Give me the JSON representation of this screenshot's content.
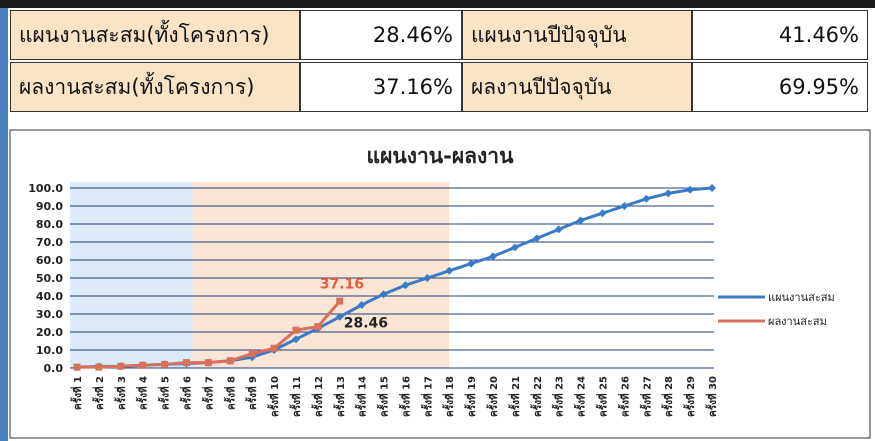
{
  "table": {
    "rows": [
      [
        "แผนงานสะสม(ทั้งโครงการ)",
        "28.46%",
        "แผนงานปีปัจจุบัน",
        "41.46%"
      ],
      [
        "ผลงานสะสม(ทั้งโครงการ)",
        "37.16%",
        "ผลงานปีปัจจุบัน",
        "69.95%"
      ]
    ]
  },
  "chart_data": {
    "type": "line",
    "title": "แผนงาน-ผลงาน",
    "categories": [
      "ครั้งที่ 1",
      "ครั้งที่ 2",
      "ครั้งที่ 3",
      "ครั้งที่ 4",
      "ครั้งที่ 5",
      "ครั้งที่ 6",
      "ครั้งที่ 7",
      "ครั้งที่ 8",
      "ครั้งที่ 9",
      "ครั้งที่ 10",
      "ครั้งที่ 11",
      "ครั้งที่ 12",
      "ครั้งที่ 13",
      "ครั้งที่ 14",
      "ครั้งที่ 15",
      "ครั้งที่ 16",
      "ครั้งที่ 17",
      "ครั้งที่ 18",
      "ครั้งที่ 19",
      "ครั้งที่ 20",
      "ครั้งที่ 21",
      "ครั้งที่ 22",
      "ครั้งที่ 23",
      "ครั้งที่ 24",
      "ครั้งที่ 25",
      "ครั้งที่ 26",
      "ครั้งที่ 27",
      "ครั้งที่ 28",
      "ครั้งที่ 29",
      "ครั้งที่ 30"
    ],
    "series": [
      {
        "name": "แผนงานสะสม",
        "color": "#3a7bc8",
        "values": [
          0.5,
          0.8,
          1.0,
          1.5,
          2,
          2.5,
          3,
          4,
          6,
          10,
          16,
          22,
          28.46,
          35,
          41,
          46,
          50,
          54,
          58,
          62,
          67,
          72,
          77,
          82,
          86,
          90,
          94,
          97,
          99,
          100
        ]
      },
      {
        "name": "ผลงานสะสม",
        "color": "#d9705a",
        "values": [
          0.5,
          0.5,
          1,
          1.5,
          2,
          3,
          3,
          4,
          8,
          11,
          21,
          23,
          37.16,
          null,
          null,
          null,
          null,
          null,
          null,
          null,
          null,
          null,
          null,
          null,
          null,
          null,
          null,
          null,
          null,
          null
        ]
      }
    ],
    "annotations": [
      {
        "text": "37.16",
        "color": "#e0603c"
      },
      {
        "text": "28.46",
        "color": "#222"
      }
    ],
    "ylim": [
      0,
      100
    ],
    "yticks": [
      {
        "value": 0,
        "label": "0.0"
      },
      {
        "value": 10,
        "label": "10.0"
      },
      {
        "value": 20,
        "label": "20.0"
      },
      {
        "value": 30,
        "label": "30.0"
      },
      {
        "value": 40,
        "label": "40.0"
      },
      {
        "value": 50,
        "label": "50.0"
      },
      {
        "value": 60,
        "label": "60.0"
      },
      {
        "value": 70,
        "label": "70.0"
      },
      {
        "value": 80,
        "label": "80.0"
      },
      {
        "value": 90,
        "label": "90.0"
      },
      {
        "value": 100,
        "label": "100.0"
      }
    ],
    "grid": true,
    "legend": "right"
  }
}
